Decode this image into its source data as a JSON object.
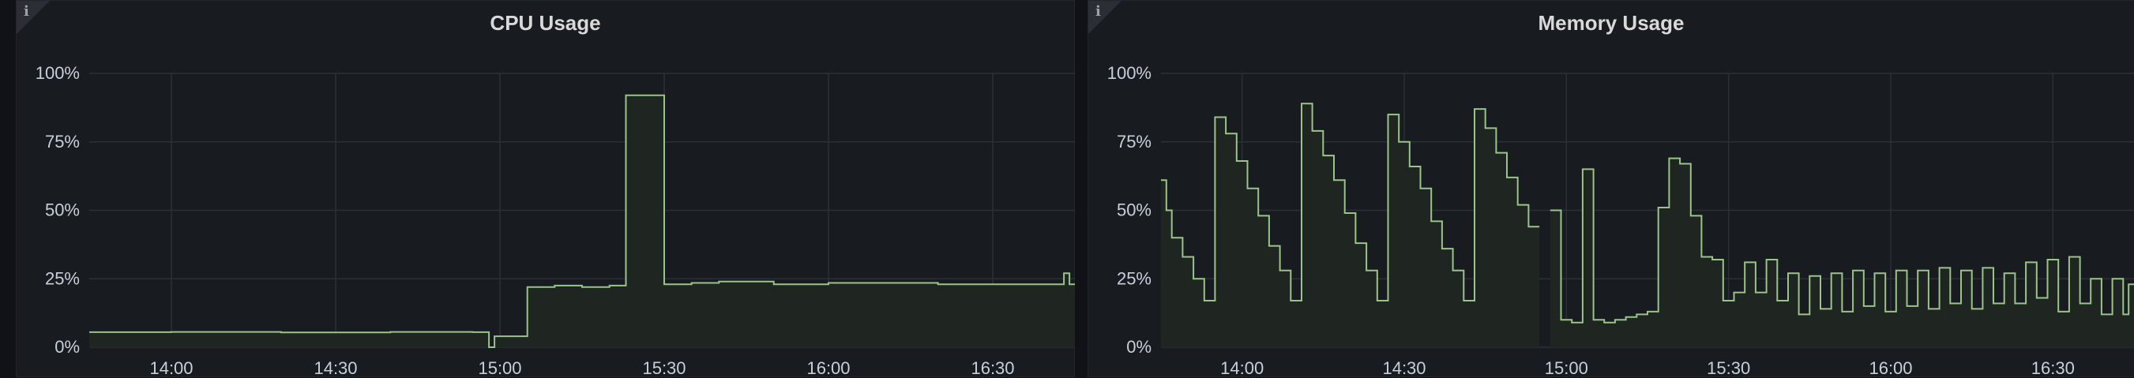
{
  "panels": [
    {
      "id": "cpu",
      "title": "CPU Usage",
      "info_icon_glyph": "i"
    },
    {
      "id": "mem",
      "title": "Memory Usage",
      "info_icon_glyph": "i"
    }
  ],
  "colors": {
    "background": "#111217",
    "panel": "#181b1f",
    "series_line": "#9ac48a",
    "series_fill": "#1f2520",
    "grid": "#2c3036",
    "text": "#c7d0d9"
  },
  "chart_data": [
    {
      "type": "area",
      "title": "CPU Usage",
      "xlabel": "",
      "ylabel": "",
      "x_range": [
        "13:45",
        "16:45"
      ],
      "ylim": [
        0,
        100
      ],
      "y_ticks": [
        "0%",
        "25%",
        "50%",
        "75%",
        "100%"
      ],
      "x_ticks": [
        "14:00",
        "14:30",
        "15:00",
        "15:30",
        "16:00",
        "16:30"
      ],
      "grid": true,
      "legend": "none",
      "series": [
        {
          "x": [
            "13:45",
            "14:00",
            "14:20",
            "14:40",
            "14:55",
            "14:58",
            "14:59",
            "15:00",
            "15:05",
            "15:10",
            "15:15",
            "15:20",
            "15:22",
            "15:23",
            "15:28",
            "15:30",
            "15:35",
            "15:40",
            "15:50",
            "16:00",
            "16:10",
            "16:20",
            "16:30",
            "16:40",
            "16:41",
            "16:43",
            "16:44"
          ],
          "values": [
            5.5,
            5.6,
            5.4,
            5.6,
            5.5,
            0,
            4,
            4,
            22,
            22.5,
            22,
            22.5,
            22.5,
            92,
            92,
            23,
            23.5,
            24,
            23,
            23.5,
            23.5,
            23,
            23,
            23,
            23,
            27,
            23
          ]
        }
      ]
    },
    {
      "type": "area",
      "title": "Memory Usage",
      "xlabel": "",
      "ylabel": "",
      "x_range": [
        "13:45",
        "16:45"
      ],
      "ylim": [
        0,
        100
      ],
      "y_ticks": [
        "0%",
        "25%",
        "50%",
        "75%",
        "100%"
      ],
      "x_ticks": [
        "14:00",
        "14:30",
        "15:00",
        "15:30",
        "16:00",
        "16:30"
      ],
      "grid": true,
      "legend": "none",
      "series": [
        {
          "x": [
            "13:45",
            "13:46",
            "13:47",
            "13:49",
            "13:51",
            "13:53",
            "13:55",
            "13:57",
            "13:59",
            "14:01",
            "14:03",
            "14:05",
            "14:07",
            "14:09",
            "14:11",
            "14:13",
            "14:15",
            "14:17",
            "14:19",
            "14:21",
            "14:23",
            "14:25",
            "14:27",
            "14:29",
            "14:31",
            "14:33",
            "14:35",
            "14:37",
            "14:39",
            "14:41",
            "14:43",
            "14:45",
            "14:47",
            "14:49",
            "14:51",
            "14:53",
            "14:55",
            "14:57",
            "14:59",
            "15:01",
            "15:03",
            "15:05",
            "15:07",
            "15:09",
            "15:11",
            "15:13",
            "15:15",
            "15:17",
            "15:19",
            "15:21",
            "15:23",
            "15:25",
            "15:27",
            "15:29",
            "15:31",
            "15:33",
            "15:35",
            "15:37",
            "15:39",
            "15:41",
            "15:43",
            "15:45",
            "15:47",
            "15:49",
            "15:51",
            "15:53",
            "15:55",
            "15:57",
            "15:59",
            "16:01",
            "16:03",
            "16:05",
            "16:07",
            "16:09",
            "16:11",
            "16:13",
            "16:15",
            "16:17",
            "16:19",
            "16:21",
            "16:23",
            "16:25",
            "16:27",
            "16:29",
            "16:31",
            "16:33",
            "16:35",
            "16:37",
            "16:39",
            "16:41",
            "16:43",
            "16:44"
          ],
          "values": [
            61,
            50,
            40,
            33,
            25,
            17,
            84,
            78,
            68,
            58,
            48,
            37,
            28,
            17,
            89,
            79,
            70,
            61,
            49,
            38,
            28,
            17,
            85,
            75,
            66,
            58,
            46,
            36,
            28,
            17,
            87,
            80,
            71,
            62,
            52,
            44,
            null,
            50,
            10,
            9,
            65,
            10,
            9,
            10,
            11,
            12,
            13,
            51,
            69,
            67,
            48,
            33,
            32,
            17,
            20,
            31,
            20,
            32,
            17,
            27,
            12,
            26,
            14,
            27,
            13,
            28,
            15,
            27,
            13,
            28,
            15,
            28,
            14,
            29,
            16,
            28,
            14,
            29,
            16,
            27,
            16,
            31,
            18,
            32,
            13,
            33,
            16,
            25,
            12,
            25,
            12,
            23
          ]
        }
      ]
    }
  ]
}
